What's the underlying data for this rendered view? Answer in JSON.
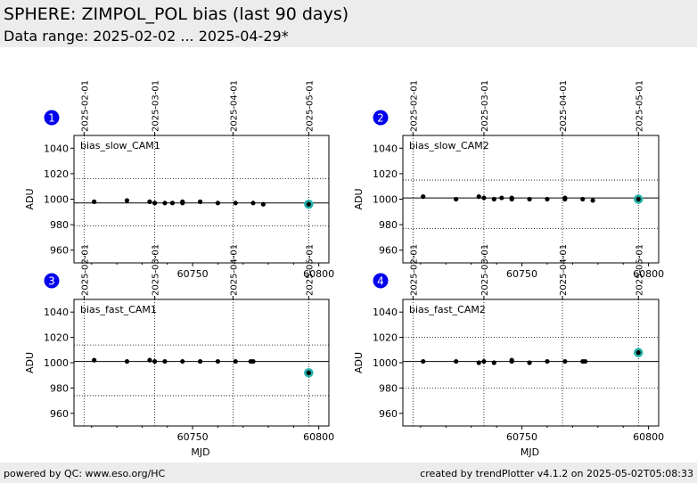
{
  "header": {
    "title": "SPHERE: ZIMPOL_POL bias (last 90 days)",
    "subtitle": "Data range: 2025-02-02 ... 2025-04-29*"
  },
  "footer": {
    "left": "powered by QC: www.eso.org/HC",
    "right": "created by trendPlotter v4.1.2 on 2025-05-02T05:08:33"
  },
  "colors": {
    "point": "#000000",
    "latest_highlight": "#20b2aa",
    "badge": "#0000ee",
    "header_bg": "#ececec"
  },
  "chart_data": [
    {
      "type": "scatter",
      "panel_number": "1",
      "label": "bias_slow_CAM1",
      "xlabel": "",
      "ylabel": "ADU",
      "xlim": [
        60703,
        60804
      ],
      "ylim": [
        950,
        1050
      ],
      "yticks": [
        960,
        980,
        1000,
        1020,
        1040
      ],
      "xticks": [
        60750,
        60800
      ],
      "date_ticks": [
        {
          "mjd": 60707,
          "label": "2025-02-01"
        },
        {
          "mjd": 60735,
          "label": "2025-03-01"
        },
        {
          "mjd": 60766,
          "label": "2025-04-01"
        },
        {
          "mjd": 60796,
          "label": "2025-05-01"
        }
      ],
      "median": 997,
      "limits": [
        979,
        1016
      ],
      "x": [
        60711,
        60724,
        60733,
        60735,
        60739,
        60742,
        60746,
        60746,
        60753,
        60760,
        60767,
        60774,
        60778
      ],
      "y": [
        998,
        999,
        998,
        997,
        997,
        997,
        997,
        998,
        998,
        997,
        997,
        997,
        996
      ],
      "latest": {
        "x": 60796,
        "y": 996
      }
    },
    {
      "type": "scatter",
      "panel_number": "2",
      "label": "bias_slow_CAM2",
      "xlabel": "",
      "ylabel": "ADU",
      "xlim": [
        60703,
        60804
      ],
      "ylim": [
        950,
        1050
      ],
      "yticks": [
        960,
        980,
        1000,
        1020,
        1040
      ],
      "xticks": [
        60750,
        60800
      ],
      "date_ticks": [
        {
          "mjd": 60707,
          "label": "2025-02-01"
        },
        {
          "mjd": 60735,
          "label": "2025-03-01"
        },
        {
          "mjd": 60766,
          "label": "2025-04-01"
        },
        {
          "mjd": 60796,
          "label": "2025-05-01"
        }
      ],
      "median": 1001,
      "limits": [
        977,
        1015
      ],
      "x": [
        60711,
        60724,
        60733,
        60735,
        60739,
        60742,
        60746,
        60746,
        60753,
        60760,
        60767,
        60767,
        60774,
        60778
      ],
      "y": [
        1002,
        1000,
        1002,
        1001,
        1000,
        1001,
        1001,
        1000,
        1000,
        1000,
        1000,
        1001,
        1000,
        999
      ],
      "latest": {
        "x": 60796,
        "y": 1000
      }
    },
    {
      "type": "scatter",
      "panel_number": "3",
      "label": "bias_fast_CAM1",
      "xlabel": "MJD",
      "ylabel": "ADU",
      "xlim": [
        60703,
        60804
      ],
      "ylim": [
        950,
        1050
      ],
      "yticks": [
        960,
        980,
        1000,
        1020,
        1040
      ],
      "xticks": [
        60750,
        60800
      ],
      "date_ticks": [
        {
          "mjd": 60707,
          "label": "2025-02-01"
        },
        {
          "mjd": 60735,
          "label": "2025-03-01"
        },
        {
          "mjd": 60766,
          "label": "2025-04-01"
        },
        {
          "mjd": 60796,
          "label": "2025-05-01"
        }
      ],
      "median": 1001,
      "limits": [
        974,
        1014
      ],
      "x": [
        60711,
        60724,
        60733,
        60735,
        60739,
        60746,
        60753,
        60760,
        60767,
        60773,
        60774
      ],
      "y": [
        1002,
        1001,
        1002,
        1001,
        1001,
        1001,
        1001,
        1001,
        1001,
        1001,
        1001
      ],
      "latest": {
        "x": 60796,
        "y": 992
      }
    },
    {
      "type": "scatter",
      "panel_number": "4",
      "label": "bias_fast_CAM2",
      "xlabel": "MJD",
      "ylabel": "ADU",
      "xlim": [
        60703,
        60804
      ],
      "ylim": [
        950,
        1050
      ],
      "yticks": [
        960,
        980,
        1000,
        1020,
        1040
      ],
      "xticks": [
        60750,
        60800
      ],
      "date_ticks": [
        {
          "mjd": 60707,
          "label": "2025-02-01"
        },
        {
          "mjd": 60735,
          "label": "2025-03-01"
        },
        {
          "mjd": 60766,
          "label": "2025-04-01"
        },
        {
          "mjd": 60796,
          "label": "2025-05-01"
        }
      ],
      "median": 1001,
      "limits": [
        980,
        1020
      ],
      "x": [
        60711,
        60724,
        60733,
        60735,
        60739,
        60746,
        60746,
        60753,
        60760,
        60767,
        60774,
        60775
      ],
      "y": [
        1001,
        1001,
        1000,
        1001,
        1000,
        1001,
        1002,
        1000,
        1001,
        1001,
        1001,
        1001
      ],
      "latest": {
        "x": 60796,
        "y": 1008
      }
    }
  ]
}
